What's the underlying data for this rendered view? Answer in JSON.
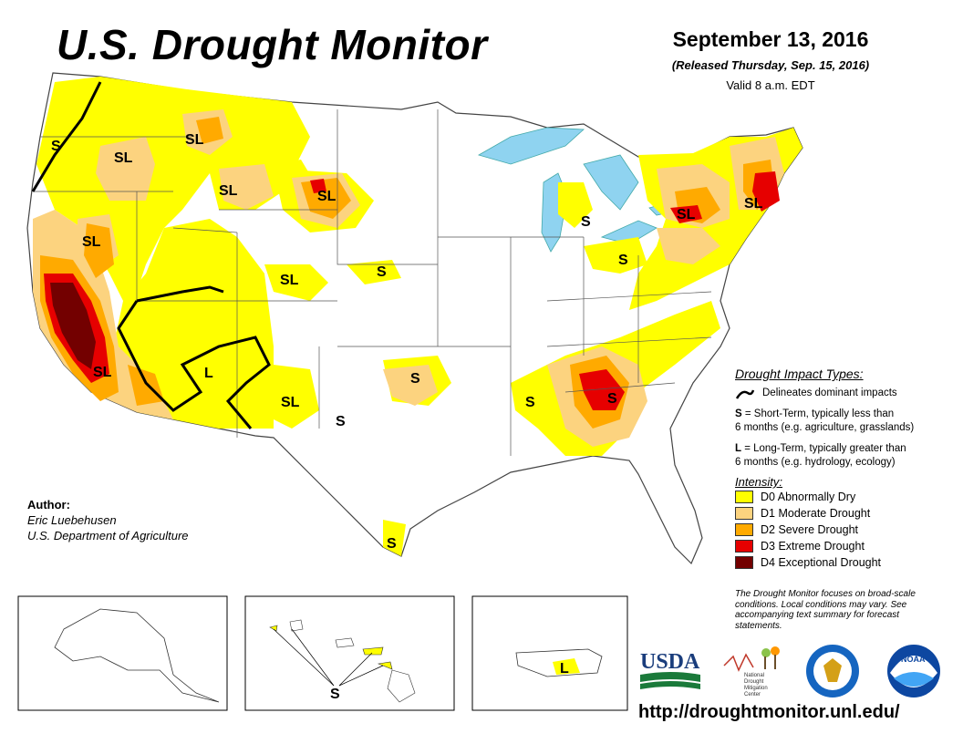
{
  "header": {
    "title": "U.S. Drought Monitor",
    "date": "September 13, 2016",
    "released": "(Released Thursday, Sep. 15, 2016)",
    "valid": "Valid 8 a.m. EDT"
  },
  "map": {
    "impact_labels": [
      "S",
      "SL",
      "SL",
      "SL",
      "SL",
      "SL",
      "SL",
      "S",
      "S",
      "L",
      "SL",
      "SL",
      "S",
      "S",
      "S",
      "S",
      "S",
      "SL",
      "SL",
      "S",
      "S"
    ],
    "insets": {
      "alaska_label": "",
      "hawaii_label": "S",
      "puerto_rico_label": "L"
    }
  },
  "legend": {
    "impact_title": "Drought Impact Types:",
    "line_desc": "Delineates dominant impacts",
    "s_key": "S",
    "s_desc_1": "= Short-Term, typically less than",
    "s_desc_2": "6 months (e.g. agriculture, grasslands)",
    "l_key": "L",
    "l_desc_1": "= Long-Term, typically greater than",
    "l_desc_2": "6 months (e.g. hydrology, ecology)",
    "intensity_title": "Intensity:",
    "intensity": [
      {
        "label": "D0 Abnormally Dry",
        "color": "#ffff00"
      },
      {
        "label": "D1 Moderate Drought",
        "color": "#fcd37f"
      },
      {
        "label": "D2 Severe Drought",
        "color": "#ffaa00"
      },
      {
        "label": "D3 Extreme Drought",
        "color": "#e60000"
      },
      {
        "label": "D4 Exceptional Drought",
        "color": "#730000"
      }
    ]
  },
  "author": {
    "heading": "Author:",
    "name": "Eric Luebehusen",
    "org": "U.S. Department of Agriculture"
  },
  "note": "The Drought Monitor focuses on broad-scale conditions. Local conditions may vary. See accompanying text summary for forecast statements.",
  "logos": {
    "usda": "USDA",
    "ndmc_1": "National",
    "ndmc_2": "Drought",
    "ndmc_3": "Mitigation",
    "ndmc_4": "Center",
    "noaa": "NOAA"
  },
  "url": "http://droughtmonitor.unl.edu/",
  "colors": {
    "water": "#8fd3f0",
    "d0": "#ffff00",
    "d1": "#fcd37f",
    "d2": "#ffaa00",
    "d3": "#e60000",
    "d4": "#730000"
  }
}
